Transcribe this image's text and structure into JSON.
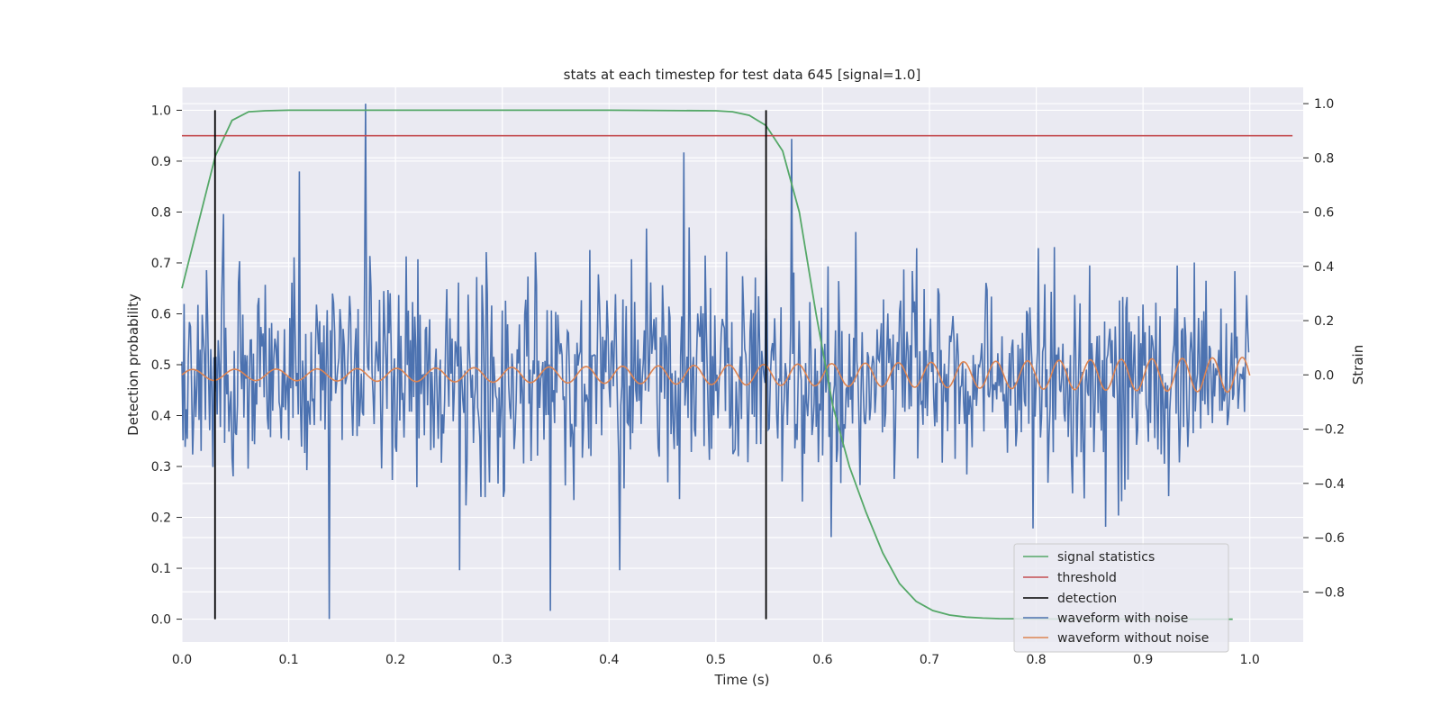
{
  "chart_data": {
    "type": "line",
    "title": "stats at each timestep for test data 645 [signal=1.0]",
    "xlabel": "Time (s)",
    "ylabel_left": "Detection probability",
    "ylabel_right": "Strain",
    "xlim": [
      0.0,
      1.05
    ],
    "ylim_left": [
      -0.045,
      1.045
    ],
    "ylim_right": [
      -0.985,
      1.06
    ],
    "xticks": [
      "0.0",
      "0.1",
      "0.2",
      "0.3",
      "0.4",
      "0.5",
      "0.6",
      "0.7",
      "0.8",
      "0.9",
      "1.0"
    ],
    "yticks_left": [
      "0.0",
      "0.1",
      "0.2",
      "0.3",
      "0.4",
      "0.5",
      "0.6",
      "0.7",
      "0.8",
      "0.9",
      "1.0"
    ],
    "yticks_right": [
      "−0.8",
      "−0.6",
      "−0.4",
      "−0.2",
      "0.0",
      "0.2",
      "0.4",
      "0.6",
      "0.8",
      "1.0"
    ],
    "grid": true,
    "legend_position": "lower-right",
    "colors": {
      "signal_statistics": "#55a868",
      "threshold": "#c44e52",
      "detection": "#000000",
      "waveform_with_noise": "#4c72b0",
      "waveform_without_noise": "#dd8452",
      "background": "#eaeaf2",
      "grid": "#ffffff"
    },
    "series": [
      {
        "name": "signal statistics",
        "axis": "left",
        "x": [
          0.0,
          0.0156,
          0.0313,
          0.0469,
          0.0625,
          0.0781,
          0.1,
          0.2,
          0.3,
          0.4,
          0.5,
          0.5156,
          0.5313,
          0.5469,
          0.5625,
          0.5781,
          0.5938,
          0.6094,
          0.625,
          0.6406,
          0.6563,
          0.6719,
          0.6875,
          0.7031,
          0.7188,
          0.7344,
          0.75,
          0.7656,
          0.8,
          0.85,
          0.9,
          0.95,
          0.984
        ],
        "values": [
          0.65,
          0.78,
          0.91,
          0.98,
          0.997,
          0.999,
          1.0,
          1.0,
          1.0,
          1.0,
          0.999,
          0.997,
          0.99,
          0.97,
          0.92,
          0.8,
          0.6,
          0.42,
          0.3,
          0.21,
          0.13,
          0.07,
          0.035,
          0.017,
          0.008,
          0.004,
          0.002,
          0.001,
          0.0005,
          0.0002,
          0.0001,
          0.0,
          0.0
        ]
      },
      {
        "name": "threshold",
        "axis": "left",
        "x": [
          0.0,
          1.04
        ],
        "values": [
          0.95,
          0.95
        ]
      },
      {
        "name": "detection",
        "axis": "left",
        "type": "vlines",
        "x": [
          0.031,
          0.547
        ],
        "ymin": 0.0,
        "ymax": 1.0
      },
      {
        "name": "waveform with noise",
        "axis": "right",
        "generated": {
          "count": 1000,
          "x_start": 0.0,
          "x_end": 0.999,
          "std": 0.2,
          "seed": 645,
          "peaks": [
            [
              0.172,
              1.0
            ],
            [
              0.138,
              -0.9
            ],
            [
              0.547,
              0.5
            ],
            [
              0.571,
              0.87
            ],
            [
              0.11,
              0.75
            ],
            [
              0.41,
              -0.72
            ],
            [
              0.865,
              -0.56
            ],
            [
              0.47,
              0.82
            ],
            [
              0.345,
              -0.87
            ],
            [
              0.26,
              -0.72
            ]
          ]
        }
      },
      {
        "name": "waveform without noise",
        "axis": "right",
        "chirp": {
          "x_start": 0.0,
          "x_end": 1.0,
          "amp_start": 0.02,
          "amp_end": 0.065,
          "f_start": 25,
          "f_end": 36,
          "offset": 0.0
        }
      }
    ]
  }
}
